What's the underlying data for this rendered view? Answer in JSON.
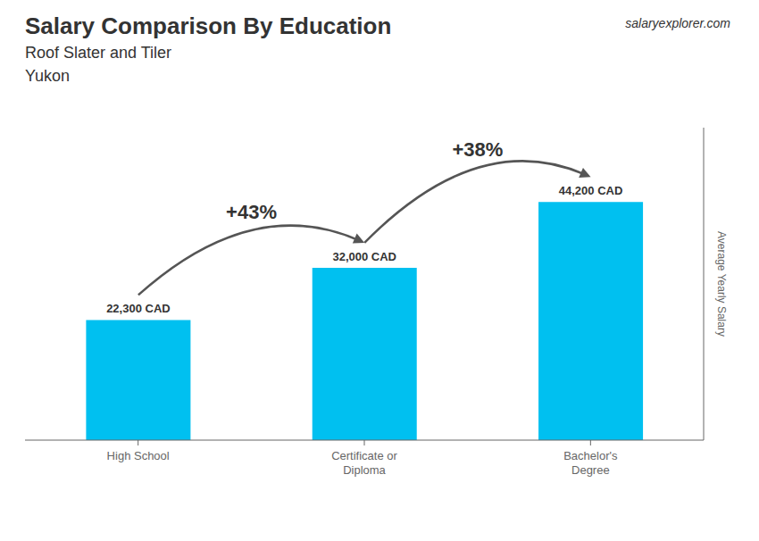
{
  "chart_data": {
    "type": "bar",
    "title": "Salary Comparison By Education",
    "subtitle": [
      "Roof Slater and Tiler",
      "Yukon"
    ],
    "ylabel": "Average Yearly Salary",
    "categories": [
      "High School",
      "Certificate or\nDiploma",
      "Bachelor's\nDegree"
    ],
    "values": [
      22300,
      32000,
      44200
    ],
    "value_labels": [
      "22,300 CAD",
      "32,000 CAD",
      "44,200 CAD"
    ],
    "data_labels": true,
    "color": "#00c0f0",
    "ylim": [
      0,
      58000
    ],
    "tick_labels": "x",
    "annotations": [
      {
        "text": "+43%",
        "between": [
          "High School",
          "Certificate or\nDiploma"
        ]
      },
      {
        "text": "+38%",
        "between": [
          "Certificate or\nDiploma",
          "Bachelor's\nDegree"
        ]
      },
      {
        "text": "salary"
      },
      {
        "text": "explorer"
      },
      {
        "text": ".com"
      }
    ]
  }
}
